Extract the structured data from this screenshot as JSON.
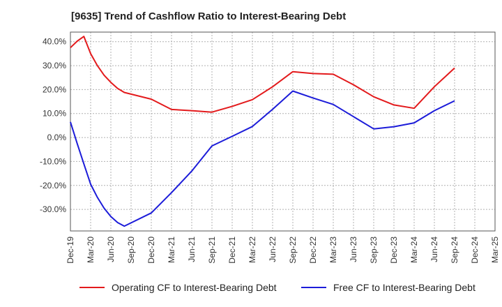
{
  "chart_data": {
    "type": "line",
    "title": "[9635]  Trend of Cashflow Ratio to Interest-Bearing Debt",
    "xlabel": "",
    "ylabel": "",
    "x_ticks": [
      "Dec-19",
      "Mar-20",
      "Jun-20",
      "Sep-20",
      "Dec-20",
      "Mar-21",
      "Jun-21",
      "Sep-21",
      "Dec-21",
      "Mar-22",
      "Jun-22",
      "Sep-22",
      "Dec-22",
      "Mar-23",
      "Jun-23",
      "Sep-23",
      "Dec-23",
      "Mar-24",
      "Jun-24",
      "Sep-24",
      "Dec-24",
      "Mar-25"
    ],
    "y_ticks": [
      "40.0%",
      "30.0%",
      "20.0%",
      "10.0%",
      "0.0%",
      "-10.0%",
      "-20.0%",
      "-30.0%"
    ],
    "ylim": [
      -39,
      44
    ],
    "y_unit": "%",
    "grid": true,
    "legend_position": "bottom",
    "series": [
      {
        "name": "Operating CF to Interest-Bearing Debt",
        "color": "#e31a1c",
        "points": [
          {
            "x": "Dec-19",
            "y": 37.5
          },
          {
            "x": "Jan-20",
            "y": 40.2
          },
          {
            "x": "Feb-20",
            "y": 42.2
          },
          {
            "x": "Mar-20",
            "y": 35.0
          },
          {
            "x": "Apr-20",
            "y": 30.0
          },
          {
            "x": "May-20",
            "y": 26.0
          },
          {
            "x": "Jun-20",
            "y": 23.0
          },
          {
            "x": "Jul-20",
            "y": 20.5
          },
          {
            "x": "Aug-20",
            "y": 18.8
          },
          {
            "x": "Dec-20",
            "y": 16.0
          },
          {
            "x": "Mar-21",
            "y": 11.7
          },
          {
            "x": "Jun-21",
            "y": 11.2
          },
          {
            "x": "Sep-21",
            "y": 10.6
          },
          {
            "x": "Dec-21",
            "y": 13.0
          },
          {
            "x": "Mar-22",
            "y": 15.8
          },
          {
            "x": "Jun-22",
            "y": 21.2
          },
          {
            "x": "Sep-22",
            "y": 27.5
          },
          {
            "x": "Dec-22",
            "y": 26.7
          },
          {
            "x": "Mar-23",
            "y": 26.4
          },
          {
            "x": "Jun-23",
            "y": 22.0
          },
          {
            "x": "Sep-23",
            "y": 17.0
          },
          {
            "x": "Dec-23",
            "y": 13.6
          },
          {
            "x": "Mar-24",
            "y": 12.2
          },
          {
            "x": "Jun-24",
            "y": 21.2
          },
          {
            "x": "Sep-24",
            "y": 29.0
          }
        ]
      },
      {
        "name": "Free CF to Interest-Bearing Debt",
        "color": "#1c1cd9",
        "points": [
          {
            "x": "Dec-19",
            "y": 6.5
          },
          {
            "x": "Jan-20",
            "y": -2.5
          },
          {
            "x": "Feb-20",
            "y": -11.0
          },
          {
            "x": "Mar-20",
            "y": -19.5
          },
          {
            "x": "Apr-20",
            "y": -25.0
          },
          {
            "x": "May-20",
            "y": -29.5
          },
          {
            "x": "Jun-20",
            "y": -33.0
          },
          {
            "x": "Jul-20",
            "y": -35.5
          },
          {
            "x": "Aug-20",
            "y": -37.0
          },
          {
            "x": "Dec-20",
            "y": -31.5
          },
          {
            "x": "Mar-21",
            "y": -23.0
          },
          {
            "x": "Jun-21",
            "y": -14.0
          },
          {
            "x": "Sep-21",
            "y": -3.5
          },
          {
            "x": "Dec-21",
            "y": 0.5
          },
          {
            "x": "Mar-22",
            "y": 4.6
          },
          {
            "x": "Jun-22",
            "y": 11.8
          },
          {
            "x": "Sep-22",
            "y": 19.4
          },
          {
            "x": "Dec-22",
            "y": 16.5
          },
          {
            "x": "Mar-23",
            "y": 13.8
          },
          {
            "x": "Jun-23",
            "y": 8.7
          },
          {
            "x": "Sep-23",
            "y": 3.6
          },
          {
            "x": "Dec-23",
            "y": 4.5
          },
          {
            "x": "Mar-24",
            "y": 6.1
          },
          {
            "x": "Jun-24",
            "y": 11.2
          },
          {
            "x": "Sep-24",
            "y": 15.3
          }
        ]
      }
    ]
  }
}
